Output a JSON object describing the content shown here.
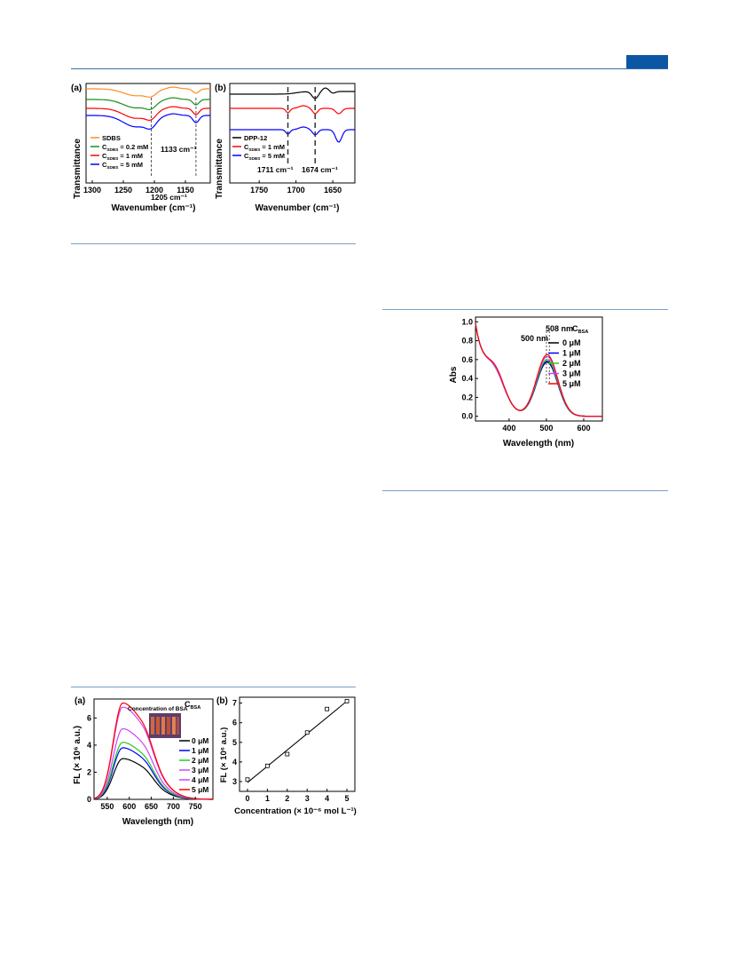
{
  "colors": {
    "header_tab": "#0b57a4",
    "rule": "#7aa0c4",
    "orange": "#ff8c1a",
    "green": "#1a8f1a",
    "red": "#ff0000",
    "blue": "#0000ff",
    "black": "#000000",
    "lime": "#22cc22",
    "magenta": "#cc44ff"
  },
  "chart_data": [
    {
      "id": "ir-a",
      "type": "line",
      "panel_label": "(a)",
      "xlabel": "Wavenumber (cm⁻¹)",
      "ylabel": "Transmittance",
      "x_ticks": [
        "1300",
        "1250",
        "1200",
        "1150"
      ],
      "x_reversed": true,
      "xlim": [
        1310,
        1110
      ],
      "legend_position": "bottom-left",
      "series": [
        {
          "name": "SDBS",
          "color": "#ff8c1a"
        },
        {
          "name": "C_SDBS = 0.2 mM",
          "color": "#1a8f1a"
        },
        {
          "name": "C_SDBS = 1 mM",
          "color": "#ff0000"
        },
        {
          "name": "C_SDBS = 5 mM",
          "color": "#0000ff"
        }
      ],
      "annotations": [
        "1133 cm⁻¹",
        "1205 cm⁻¹"
      ],
      "marker_lines": [
        1205,
        1133
      ]
    },
    {
      "id": "ir-b",
      "type": "line",
      "panel_label": "(b)",
      "xlabel": "Wavenumber (cm⁻¹)",
      "ylabel": "Transmittance",
      "x_ticks": [
        "1750",
        "1700",
        "1650"
      ],
      "x_reversed": true,
      "xlim": [
        1790,
        1620
      ],
      "legend_position": "bottom-left",
      "series": [
        {
          "name": "DPP-12",
          "color": "#000000"
        },
        {
          "name": "C_SDBS = 1 mM",
          "color": "#ff0000"
        },
        {
          "name": "C_SDBS = 5 mM",
          "color": "#0000ff"
        }
      ],
      "annotations": [
        "1711 cm⁻¹",
        "1674 cm⁻¹"
      ],
      "marker_lines": [
        1711,
        1674
      ]
    },
    {
      "id": "abs",
      "type": "line",
      "xlabel": "Wavelength (nm)",
      "ylabel": "Abs",
      "x_ticks": [
        "400",
        "500",
        "600"
      ],
      "y_ticks": [
        "0.0",
        "0.2",
        "0.4",
        "0.6",
        "0.8",
        "1.0"
      ],
      "xlim": [
        310,
        650
      ],
      "ylim": [
        -0.05,
        1.05
      ],
      "legend_title": "C_BSA",
      "legend_position": "right",
      "annotations": [
        "508 nm",
        "500 nm"
      ],
      "series": [
        {
          "name": "0 μM",
          "color": "#000000",
          "peak": 0.57
        },
        {
          "name": "1 μM",
          "color": "#0000ff",
          "peak": 0.58
        },
        {
          "name": "2 μM",
          "color": "#22cc22",
          "peak": 0.6
        },
        {
          "name": "3 μM",
          "color": "#cc44ff",
          "peak": 0.63
        },
        {
          "name": "5 μM",
          "color": "#ff0000",
          "peak": 0.65
        }
      ]
    },
    {
      "id": "fl",
      "type": "line",
      "panel_label": "(a)",
      "xlabel": "Wavelength (nm)",
      "ylabel": "FL (× 10⁶ a.u.)",
      "x_ticks": [
        "550",
        "600",
        "650",
        "700",
        "750"
      ],
      "y_ticks": [
        "0",
        "2",
        "4",
        "6"
      ],
      "xlim": [
        520,
        790
      ],
      "ylim": [
        0,
        7.4
      ],
      "legend_title": "C_BSA",
      "legend_position": "right",
      "inset_title": "Concentration of BSA",
      "series": [
        {
          "name": "0 μM",
          "color": "#000000",
          "peak": 3.0
        },
        {
          "name": "1 μM",
          "color": "#0000ff",
          "peak": 3.8
        },
        {
          "name": "2 μM",
          "color": "#22cc22",
          "peak": 4.2
        },
        {
          "name": "3 μM",
          "color": "#cc44ff",
          "peak": 5.2
        },
        {
          "name": "4 μM",
          "color": "#cc44ff",
          "peak": 6.8
        },
        {
          "name": "5 μM",
          "color": "#ff0000",
          "peak": 7.1
        }
      ]
    },
    {
      "id": "fit",
      "type": "scatter",
      "panel_label": "(b)",
      "xlabel": "Concentration (× 10⁻⁶ mol L⁻¹)",
      "ylabel": "FL (× 10⁶ a.u.)",
      "x_ticks": [
        "0",
        "1",
        "2",
        "3",
        "4",
        "5"
      ],
      "y_ticks": [
        "3",
        "4",
        "5",
        "6",
        "7"
      ],
      "xlim": [
        -0.4,
        5.4
      ],
      "ylim": [
        2.5,
        7.3
      ],
      "x": [
        0,
        1,
        2,
        3,
        4,
        5
      ],
      "y": [
        3.1,
        3.8,
        4.4,
        5.5,
        6.7,
        7.1
      ],
      "fit_line": {
        "x": [
          0,
          5
        ],
        "y": [
          2.95,
          7.1
        ]
      }
    }
  ]
}
